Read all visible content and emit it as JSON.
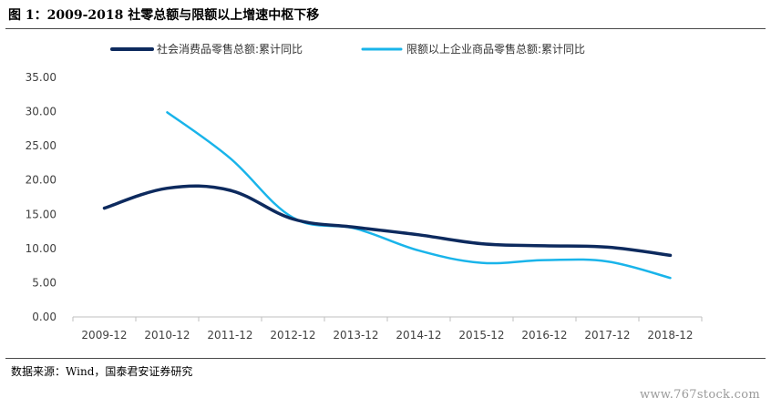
{
  "header": {
    "title": "图 1：2009-2018 社零总额与限额以上增速中枢下移"
  },
  "footer": {
    "source": "数据来源：Wind，国泰君安证券研究",
    "watermark": "www.767stock.com"
  },
  "colors": {
    "series1": "#0d2a5e",
    "series2": "#19b4ea",
    "axis": "#bfbfbf",
    "text": "#404040"
  },
  "chart_data": {
    "type": "line",
    "categories": [
      "2009-12",
      "2010-12",
      "2011-12",
      "2012-12",
      "2013-12",
      "2014-12",
      "2015-12",
      "2016-12",
      "2017-12",
      "2018-12"
    ],
    "ylim": [
      0,
      35
    ],
    "yticks": [
      "0.00",
      "5.00",
      "10.00",
      "15.00",
      "20.00",
      "25.00",
      "30.00",
      "35.00"
    ],
    "grid": false,
    "legend": "top",
    "series": [
      {
        "name": "社会消费品零售总额:累计同比",
        "color": "#0d2a5e",
        "values": [
          15.9,
          18.8,
          18.5,
          14.3,
          13.1,
          12.0,
          10.7,
          10.4,
          10.2,
          9.0
        ]
      },
      {
        "name": "限额以上企业商品零售总额:累计同比",
        "color": "#19b4ea",
        "values": [
          null,
          29.9,
          23.2,
          14.5,
          12.9,
          9.7,
          7.9,
          8.3,
          8.1,
          5.7
        ]
      }
    ]
  }
}
